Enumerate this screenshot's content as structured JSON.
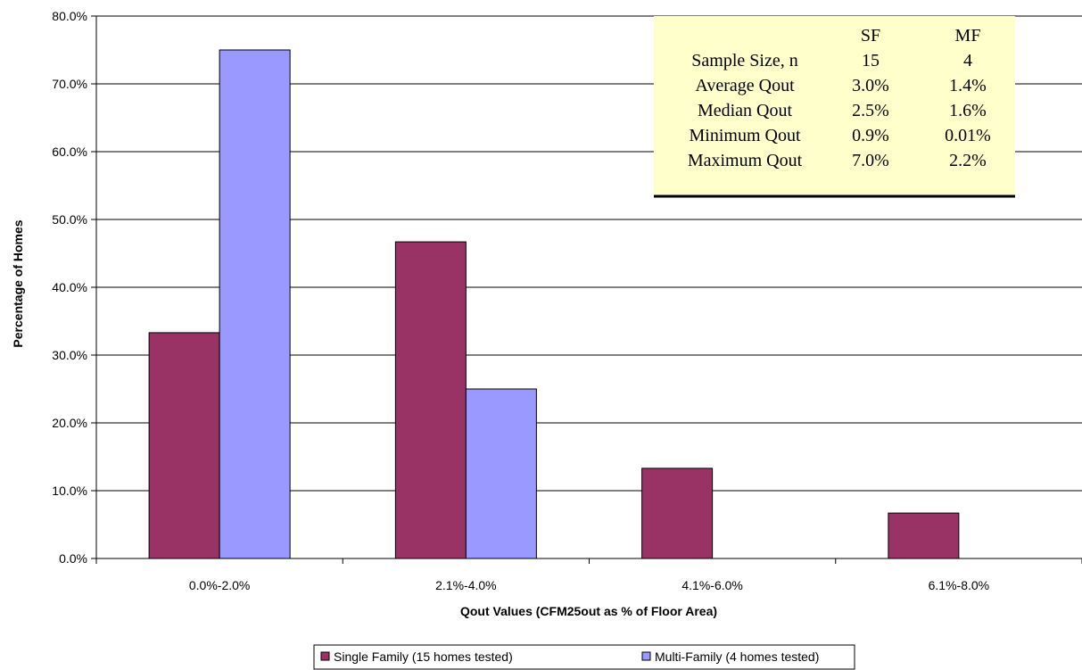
{
  "chart_data": {
    "type": "bar",
    "title": "",
    "xlabel": "Qout Values (CFM25out as % of Floor Area)",
    "ylabel": "Percentage of Homes",
    "categories": [
      "0.0%-2.0%",
      "2.1%-4.0%",
      "4.1%-6.0%",
      "6.1%-8.0%"
    ],
    "series": [
      {
        "name": "Single Family (15 homes tested)",
        "values": [
          33.3,
          46.7,
          13.3,
          6.7
        ],
        "color": "#993366"
      },
      {
        "name": "Multi-Family (4 homes tested)",
        "values": [
          75.0,
          25.0,
          0,
          0
        ],
        "color": "#9999ff"
      }
    ],
    "ylim": [
      0,
      80
    ],
    "yticks": [
      "0.0%",
      "10.0%",
      "20.0%",
      "30.0%",
      "40.0%",
      "50.0%",
      "60.0%",
      "70.0%",
      "80.0%"
    ],
    "grid": true,
    "legend_position": "bottom",
    "stats_table": {
      "header": [
        "",
        "SF",
        "MF"
      ],
      "rows": [
        [
          "Sample Size, n",
          "15",
          "4"
        ],
        [
          "Average Qout",
          "3.0%",
          "1.4%"
        ],
        [
          "Median Qout",
          "2.5%",
          "1.6%"
        ],
        [
          "Minimum Qout",
          "0.9%",
          "0.01%"
        ],
        [
          "Maximum Qout",
          "7.0%",
          "2.2%"
        ]
      ],
      "background": "#ffffcc"
    }
  }
}
